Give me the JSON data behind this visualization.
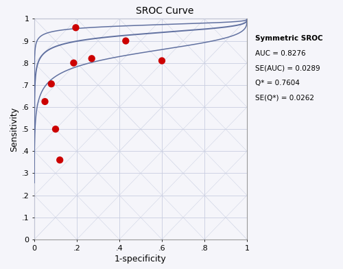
{
  "title": "SROC Curve",
  "xlabel": "1-specificity",
  "ylabel": "Sensitivity",
  "annotation_title": "Symmetric SROC",
  "annotation_lines": [
    "AUC = 0.8276",
    "SE(AUC) = 0.0289",
    "Q* = 0.7604",
    "SE(Q*) = 0.0262"
  ],
  "scatter_points": [
    [
      0.05,
      0.625
    ],
    [
      0.08,
      0.705
    ],
    [
      0.1,
      0.5
    ],
    [
      0.12,
      0.36
    ],
    [
      0.185,
      0.8
    ],
    [
      0.195,
      0.96
    ],
    [
      0.27,
      0.82
    ],
    [
      0.43,
      0.9
    ],
    [
      0.6,
      0.81
    ]
  ],
  "curve_color": "#6070a0",
  "scatter_color": "#cc0000",
  "background_color": "#f5f5fa",
  "grid_color": "#c8cde0",
  "xticks": [
    0,
    0.2,
    0.4,
    0.6,
    0.8,
    1.0
  ],
  "yticks": [
    0,
    0.1,
    0.2,
    0.3,
    0.4,
    0.5,
    0.6,
    0.7,
    0.8,
    0.9,
    1.0
  ],
  "xlim": [
    0,
    1
  ],
  "ylim": [
    0,
    1
  ],
  "sroc_a": 2.6,
  "sroc_b": 0.3,
  "upper_a": 3.5,
  "upper_b": 0.3,
  "lower_a": 1.7,
  "lower_b": 0.3
}
